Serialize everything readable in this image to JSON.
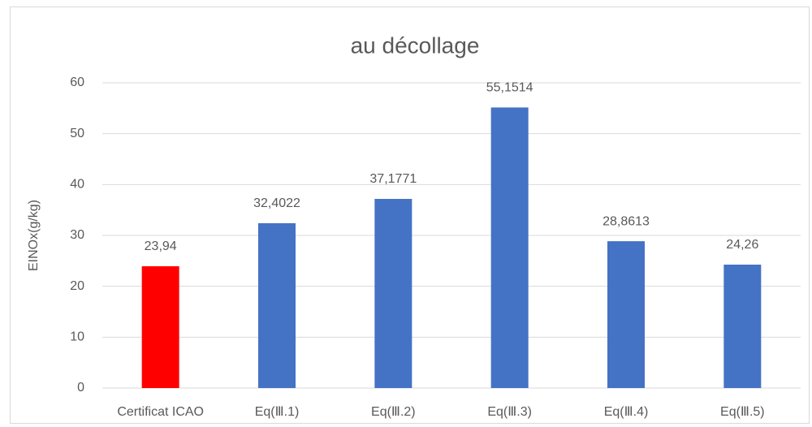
{
  "chart_data": {
    "type": "bar",
    "title": "au décollage",
    "y_label": "EINOx(g/kg)",
    "categories": [
      "Certificat ICAO",
      "Eq(Ⅲ.1)",
      "Eq(Ⅲ.2)",
      "Eq(Ⅲ.3)",
      "Eq(Ⅲ.4)",
      "Eq(Ⅲ.5)"
    ],
    "values": [
      23.94,
      32.4022,
      37.1771,
      55.1514,
      28.8613,
      24.26
    ],
    "value_labels": [
      "23,94",
      "32,4022",
      "37,1771",
      "55,1514",
      "28,8613",
      "24,26"
    ],
    "colors": [
      "#ff0000",
      "#4472c4",
      "#4472c4",
      "#4472c4",
      "#4472c4",
      "#4472c4"
    ],
    "ylim": [
      0,
      60
    ],
    "yticks": [
      0,
      10,
      20,
      30,
      40,
      50,
      60
    ],
    "grid": true
  }
}
